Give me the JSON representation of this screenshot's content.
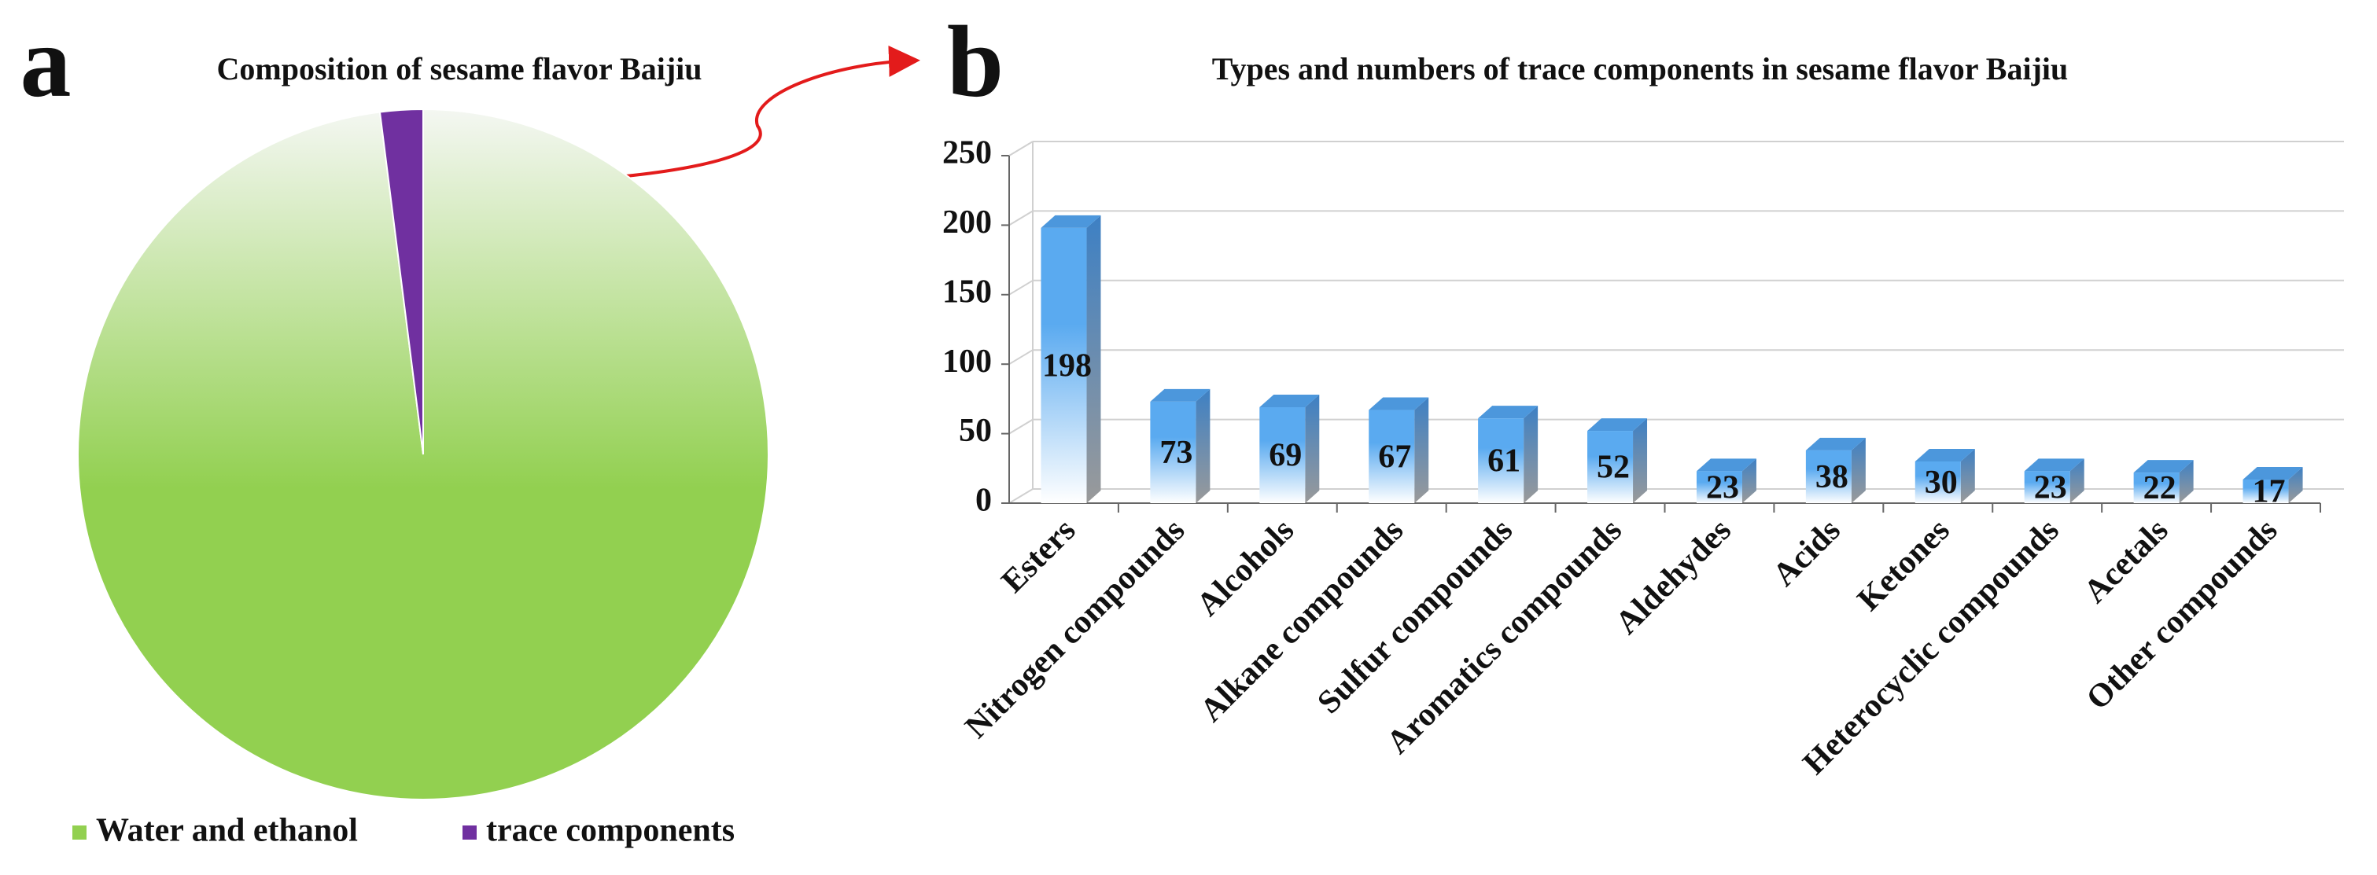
{
  "chart_data": [
    {
      "type": "pie",
      "panel_label": "a",
      "title": "Composition of sesame flavor Baijiu",
      "categories": [
        "Water and ethanol",
        "trace components"
      ],
      "values": [
        98,
        2
      ],
      "colors": [
        "#92d050",
        "#7030a0"
      ],
      "legend": "bottom"
    },
    {
      "type": "bar",
      "panel_label": "b",
      "title": "Types and numbers of trace components in sesame flavor Baijiu",
      "categories": [
        "Esters",
        "Nitrogen compounds",
        "Alcohols",
        "Alkane compounds",
        "Sulfur compounds",
        "Aromatics compounds",
        "Aldehydes",
        "Acids",
        "Ketones",
        "Heterocyclic compounds",
        "Acetals",
        "Other compounds"
      ],
      "values": [
        198,
        73,
        69,
        67,
        61,
        52,
        23,
        38,
        30,
        23,
        22,
        17
      ],
      "color": "#5aaaf0",
      "ylim": [
        0,
        250
      ],
      "yticks": [
        0,
        50,
        100,
        150,
        200,
        250
      ],
      "grid": true
    }
  ]
}
